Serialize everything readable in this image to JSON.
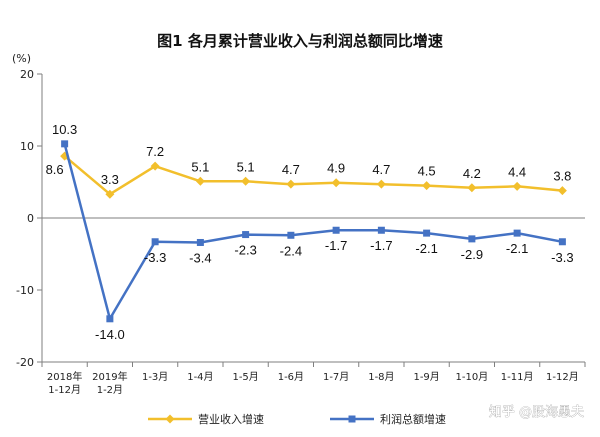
{
  "chart_data": {
    "type": "line",
    "title": "图1  各月累计营业收入与利润总额同比增速",
    "ylabel": "(%)",
    "ylim": [
      -20,
      20
    ],
    "yticks": [
      20,
      10,
      0,
      -10,
      -20
    ],
    "categories": [
      [
        "2018年",
        "1-12月"
      ],
      [
        "2019年",
        "1-2月"
      ],
      [
        "1-3月"
      ],
      [
        "1-4月"
      ],
      [
        "1-5月"
      ],
      [
        "1-6月"
      ],
      [
        "1-7月"
      ],
      [
        "1-8月"
      ],
      [
        "1-9月"
      ],
      [
        "1-10月"
      ],
      [
        "1-11月"
      ],
      [
        "1-12月"
      ]
    ],
    "series": [
      {
        "name": "营业收入增速",
        "color": "#F2BF2C",
        "marker": "diamond",
        "values": [
          8.6,
          3.3,
          7.2,
          5.1,
          5.1,
          4.7,
          4.9,
          4.7,
          4.5,
          4.2,
          4.4,
          3.8
        ],
        "labels": [
          "8.6",
          "3.3",
          "7.2",
          "5.1",
          "5.1",
          "4.7",
          "4.9",
          "4.7",
          "4.5",
          "4.2",
          "4.4",
          "3.8"
        ]
      },
      {
        "name": "利润总额增速",
        "color": "#4472C4",
        "marker": "square",
        "values": [
          10.3,
          -14.0,
          -3.3,
          -3.4,
          -2.3,
          -2.4,
          -1.7,
          -1.7,
          -2.1,
          -2.9,
          -2.1,
          -3.3
        ],
        "labels": [
          "10.3",
          "-14.0",
          "-3.3",
          "-3.4",
          "-2.3",
          "-2.4",
          "-1.7",
          "-1.7",
          "-2.1",
          "-2.9",
          "-2.1",
          "-3.3"
        ]
      }
    ],
    "grid": false,
    "legend": "bottom"
  },
  "watermark": "知乎 @股海愚夫"
}
